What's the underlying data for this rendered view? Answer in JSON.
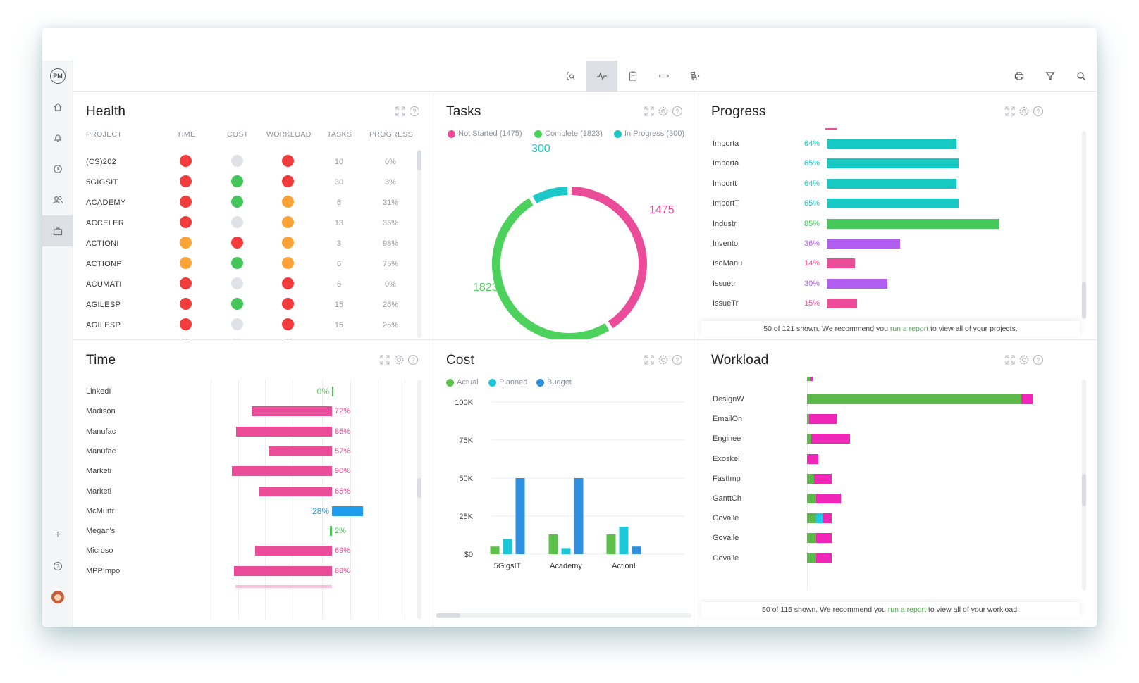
{
  "app": {
    "logo": "PM",
    "sidebar_icons": [
      "home-icon",
      "bell-icon",
      "clock-icon",
      "people-icon",
      "briefcase-icon",
      "plus-icon",
      "help-icon",
      "user-avatar"
    ],
    "toolbar_icons": [
      "zoom-search-icon",
      "pulse-icon",
      "clipboard-icon",
      "minus-icon",
      "hierarchy-icon"
    ],
    "right_icons": [
      "print-icon",
      "filter-icon",
      "search-icon"
    ]
  },
  "health": {
    "title": "Health",
    "headers": [
      "PROJECT",
      "TIME",
      "COST",
      "WORKLOAD",
      "TASKS",
      "PROGRESS"
    ],
    "rows": [
      {
        "project": "(CS)202",
        "time": "red",
        "cost": "gray",
        "workload": "red",
        "tasks": "10",
        "progress": "0%"
      },
      {
        "project": "5GIGSIT",
        "time": "red",
        "cost": "green",
        "workload": "red",
        "tasks": "30",
        "progress": "3%"
      },
      {
        "project": "ACADEMY",
        "time": "red",
        "cost": "green",
        "workload": "orange",
        "tasks": "6",
        "progress": "31%"
      },
      {
        "project": "ACCELER",
        "time": "red",
        "cost": "gray",
        "workload": "orange",
        "tasks": "13",
        "progress": "36%"
      },
      {
        "project": "ACTIONI",
        "time": "orange",
        "cost": "red",
        "workload": "orange",
        "tasks": "3",
        "progress": "98%"
      },
      {
        "project": "ACTIONP",
        "time": "orange",
        "cost": "green",
        "workload": "orange",
        "tasks": "6",
        "progress": "75%"
      },
      {
        "project": "ACUMATI",
        "time": "red",
        "cost": "gray",
        "workload": "red",
        "tasks": "6",
        "progress": "0%"
      },
      {
        "project": "AGILESP",
        "time": "red",
        "cost": "green",
        "workload": "red",
        "tasks": "15",
        "progress": "26%"
      },
      {
        "project": "AGILESP",
        "time": "red",
        "cost": "gray",
        "workload": "red",
        "tasks": "15",
        "progress": "25%"
      }
    ],
    "colors": {
      "red": "#f23b3b",
      "orange": "#fba336",
      "green": "#44c55a",
      "gray": "#dfe2e6"
    }
  },
  "tasks": {
    "title": "Tasks",
    "legend": [
      {
        "label": "Not Started (1475)",
        "color": "#ea4c9a"
      },
      {
        "label": "Complete (1823)",
        "color": "#4cd15c"
      },
      {
        "label": "In Progress (300)",
        "color": "#1dc8c8"
      }
    ],
    "labels": {
      "in_progress": "300",
      "not_started": "1475",
      "complete": "1823"
    }
  },
  "progress": {
    "title": "Progress",
    "rows": [
      {
        "name": "Importa",
        "pct": "64%",
        "value": 64,
        "color": "#17c9c3"
      },
      {
        "name": "Importa",
        "pct": "65%",
        "value": 65,
        "color": "#17c9c3"
      },
      {
        "name": "Importt",
        "pct": "64%",
        "value": 64,
        "color": "#17c9c3"
      },
      {
        "name": "ImportT",
        "pct": "65%",
        "value": 65,
        "color": "#17c9c3"
      },
      {
        "name": "Industr",
        "pct": "85%",
        "value": 85,
        "color": "#45c95a"
      },
      {
        "name": "Invento",
        "pct": "36%",
        "value": 36,
        "color": "#b15ef0"
      },
      {
        "name": "IsoManu",
        "pct": "14%",
        "value": 14,
        "color": "#ec4c98"
      },
      {
        "name": "Issuetr",
        "pct": "30%",
        "value": 30,
        "color": "#b15ef0"
      },
      {
        "name": "IssueTr",
        "pct": "15%",
        "value": 15,
        "color": "#ec4c98"
      }
    ],
    "note_prefix": "50 of 121 shown. We recommend you ",
    "note_link": "run a report",
    "note_suffix": " to view all of your projects."
  },
  "time": {
    "title": "Time",
    "rows": [
      {
        "name": "LinkedI",
        "pct": "0%",
        "value": 0,
        "color": "#4cc05a",
        "side": "left"
      },
      {
        "name": "Madison",
        "pct": "72%",
        "value": 72,
        "color": "#ea4c9a",
        "side": "left"
      },
      {
        "name": "Manufac",
        "pct": "86%",
        "value": 86,
        "color": "#ea4c9a",
        "side": "left"
      },
      {
        "name": "Manufac",
        "pct": "57%",
        "value": 57,
        "color": "#ea4c9a",
        "side": "left"
      },
      {
        "name": "Marketi",
        "pct": "90%",
        "value": 90,
        "color": "#ea4c9a",
        "side": "left"
      },
      {
        "name": "Marketi",
        "pct": "65%",
        "value": 65,
        "color": "#ea4c9a",
        "side": "left"
      },
      {
        "name": "McMurtr",
        "pct": "28%",
        "value": 28,
        "color": "#1e9cf0",
        "side": "right"
      },
      {
        "name": "Megan's",
        "pct": "2%",
        "value": 2,
        "color": "#4cc05a",
        "side": "left"
      },
      {
        "name": "Microso",
        "pct": "69%",
        "value": 69,
        "color": "#ea4c9a",
        "side": "left"
      },
      {
        "name": "MPPImpo",
        "pct": "88%",
        "value": 88,
        "color": "#ea4c9a",
        "side": "left"
      }
    ]
  },
  "cost": {
    "title": "Cost",
    "legend": [
      {
        "label": "Actual",
        "color": "#5cc04a"
      },
      {
        "label": "Planned",
        "color": "#1dc8d8"
      },
      {
        "label": "Budget",
        "color": "#2f90e0"
      }
    ],
    "chart_data": {
      "type": "bar",
      "categories": [
        "5GigsIT",
        "Academy",
        "ActionI"
      ],
      "series": [
        {
          "name": "Actual",
          "values": [
            5000,
            13000,
            13000
          ]
        },
        {
          "name": "Planned",
          "values": [
            10000,
            4000,
            18000
          ]
        },
        {
          "name": "Budget",
          "values": [
            50000,
            50000,
            5000
          ]
        }
      ],
      "yticks": [
        "100K",
        "75K",
        "50K",
        "25K",
        "$0"
      ],
      "ylim": [
        0,
        100000
      ]
    }
  },
  "workload": {
    "title": "Workload",
    "rows": [
      {
        "name": "DesignW",
        "green": 95,
        "cyan": 0,
        "pink": 5
      },
      {
        "name": "EmailOn",
        "green": 1,
        "cyan": 0,
        "pink": 12
      },
      {
        "name": "Enginee",
        "green": 2,
        "cyan": 0,
        "pink": 17
      },
      {
        "name": "Exoskel",
        "green": 0,
        "cyan": 0,
        "pink": 5
      },
      {
        "name": "FastImp",
        "green": 3,
        "cyan": 0,
        "pink": 8
      },
      {
        "name": "GanttCh",
        "green": 4,
        "cyan": 0,
        "pink": 11
      },
      {
        "name": "Govalle",
        "green": 4,
        "cyan": 3,
        "pink": 4
      },
      {
        "name": "Govalle",
        "green": 4,
        "cyan": 0,
        "pink": 7
      },
      {
        "name": "Govalle",
        "green": 4,
        "cyan": 0,
        "pink": 7
      }
    ],
    "note_prefix": "50 of 115 shown. We recommend you ",
    "note_link": "run a report",
    "note_suffix": " to view all of your workload."
  }
}
